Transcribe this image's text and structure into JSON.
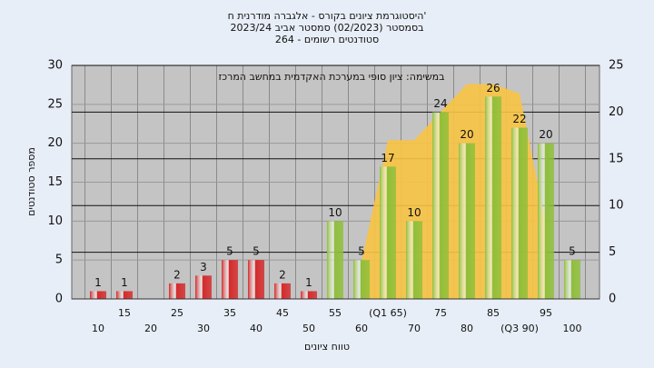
{
  "chart_data": {
    "type": "bar",
    "title_lines": [
      "היסטוגרמת ציונים בקורס - אלגברה מודרנית ח'",
      "בסמסטר  (02/2023)  סמסטר אביב 2023/24",
      "סטודנטים רשומים - 264"
    ],
    "annotation": "במשימה: ציון סופי במערכת האקדמית במחשב המרכז",
    "xlabel": "טווח ציונים",
    "ylabel": "מספר סטודנטים",
    "categories": [
      "10",
      "15",
      "20",
      "25",
      "30",
      "35",
      "40",
      "45",
      "50",
      "55",
      "60",
      "(Q1 65)",
      "70",
      "75",
      "80",
      "85",
      "(Q3 90)",
      "95",
      "100"
    ],
    "values": [
      1,
      1,
      0,
      2,
      3,
      5,
      5,
      2,
      1,
      10,
      5,
      17,
      10,
      24,
      20,
      26,
      22,
      20,
      5
    ],
    "colors": [
      "#d42a2a",
      "#d42a2a",
      "#d42a2a",
      "#d42a2a",
      "#d42a2a",
      "#d42a2a",
      "#d42a2a",
      "#d42a2a",
      "#d42a2a",
      "#8fbf3a",
      "#8fbf3a",
      "#8fbf3a",
      "#8fbf3a",
      "#8fbf3a",
      "#8fbf3a",
      "#8fbf3a",
      "#8fbf3a",
      "#8fbf3a",
      "#8fbf3a"
    ],
    "area": {
      "color": "#f8c444",
      "axis": "y2",
      "values": [
        null,
        null,
        null,
        null,
        null,
        null,
        null,
        null,
        null,
        null,
        4,
        17,
        17,
        20,
        23,
        23,
        22,
        8,
        null
      ]
    },
    "ylim": [
      0,
      30
    ],
    "yticks": [
      0,
      5,
      10,
      15,
      20,
      25,
      30
    ],
    "y2lim": [
      0,
      25
    ],
    "y2ticks": [
      0,
      5,
      10,
      15,
      20,
      25
    ],
    "grid": true
  }
}
